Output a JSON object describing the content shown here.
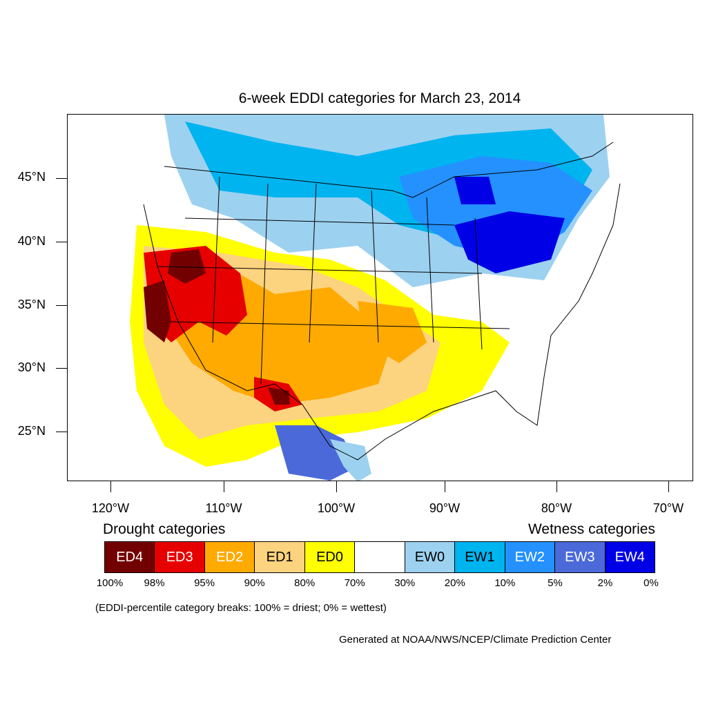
{
  "title": "6-week EDDI categories for March 23, 2014",
  "lat_labels": [
    "45°N",
    "40°N",
    "35°N",
    "30°N",
    "25°N"
  ],
  "lon_labels": [
    "120°W",
    "110°W",
    "100°W",
    "90°W",
    "80°W",
    "70°W"
  ],
  "legend": {
    "drought_title": "Drought categories",
    "wetness_title": "Wetness categories",
    "categories": [
      {
        "label": "ED4",
        "color": "#730000",
        "text_color": "#ffffff"
      },
      {
        "label": "ED3",
        "color": "#e60000",
        "text_color": "#ffffff"
      },
      {
        "label": "ED2",
        "color": "#ffaa00",
        "text_color": "#ffffff"
      },
      {
        "label": "ED1",
        "color": "#fcd37f",
        "text_color": "#000000"
      },
      {
        "label": "ED0",
        "color": "#ffff00",
        "text_color": "#000000"
      },
      {
        "label": "",
        "color": "#ffffff",
        "text_color": "#000000"
      },
      {
        "label": "EW0",
        "color": "#9dd1f0",
        "text_color": "#000000"
      },
      {
        "label": "EW1",
        "color": "#00b4f0",
        "text_color": "#000000"
      },
      {
        "label": "EW2",
        "color": "#2491ff",
        "text_color": "#ffffff"
      },
      {
        "label": "EW3",
        "color": "#4b69d9",
        "text_color": "#ffffff"
      },
      {
        "label": "EW4",
        "color": "#0000e6",
        "text_color": "#ffffff"
      }
    ],
    "breaks": [
      "100%",
      "98%",
      "95%",
      "90%",
      "80%",
      "70%",
      "30%",
      "20%",
      "10%",
      "5%",
      "2%",
      "0%"
    ]
  },
  "note": "(EDDI-percentile category breaks: 100% = driest; 0% = wettest)",
  "credit": "Generated at NOAA/NWS/NCEP/Climate Prediction Center"
}
